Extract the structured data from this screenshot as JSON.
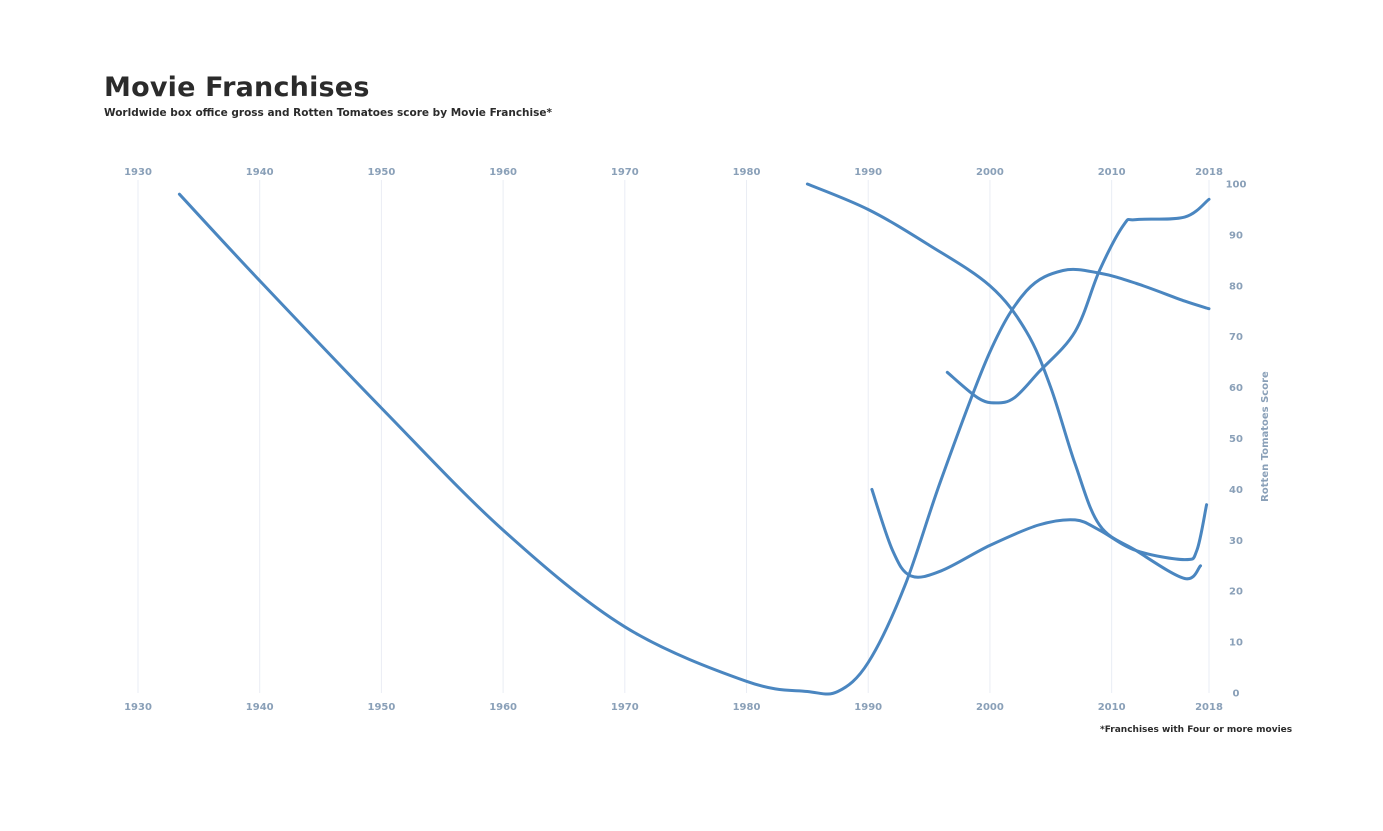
{
  "chart_data": {
    "type": "line",
    "title": "Movie Franchises",
    "subtitle": "Worldwide box office gross and Rotten Tomatoes score by Movie Franchise*",
    "footnote": "*Franchises with Four or more movies",
    "xlabel": "",
    "ylabel": "Rotten Tomatoes Score",
    "xlim": [
      1930,
      2018
    ],
    "ylim": [
      0,
      100
    ],
    "x_ticks": [
      1930,
      1940,
      1950,
      1960,
      1970,
      1980,
      1990,
      2000,
      2010,
      2018
    ],
    "y_ticks": [
      0,
      10,
      20,
      30,
      40,
      50,
      60,
      70,
      80,
      90,
      100
    ],
    "y_axis_position": "right",
    "x_ticks_top_and_bottom": true,
    "grid": "vertical",
    "line_color": "#4a86c0",
    "series": [
      {
        "x": [
          1933.4,
          1940,
          1950,
          1960,
          1970,
          1980,
          1985,
          1987.5,
          1990,
          1993,
          1996,
          2000,
          2003,
          2006,
          2009,
          2012,
          2016,
          2018
        ],
        "y": [
          98,
          81,
          56,
          32,
          13,
          2.3,
          0.3,
          0.3,
          6,
          21,
          42,
          67,
          79,
          83,
          82.5,
          80.5,
          77,
          75.5
        ]
      },
      {
        "x": [
          1985,
          1990,
          1995,
          2000,
          2003,
          2005,
          2007,
          2009,
          2012,
          2016,
          2017.3
        ],
        "y": [
          100,
          95,
          88,
          80,
          71,
          60,
          45,
          33,
          28,
          22.5,
          25
        ]
      },
      {
        "x": [
          1996.5,
          1999,
          2000.5,
          2002,
          2004,
          2007,
          2009,
          2011,
          2012,
          2016,
          2018
        ],
        "y": [
          63,
          58,
          57,
          58,
          63,
          71,
          83,
          92,
          93,
          93.5,
          97
        ]
      },
      {
        "x": [
          1990.3,
          1992,
          1993.5,
          1996,
          2000,
          2004,
          2007,
          2009,
          2012,
          2016,
          2017,
          2017.8
        ],
        "y": [
          40,
          28,
          23,
          24,
          29,
          33,
          34,
          32,
          28,
          26.2,
          28,
          37
        ]
      }
    ]
  }
}
